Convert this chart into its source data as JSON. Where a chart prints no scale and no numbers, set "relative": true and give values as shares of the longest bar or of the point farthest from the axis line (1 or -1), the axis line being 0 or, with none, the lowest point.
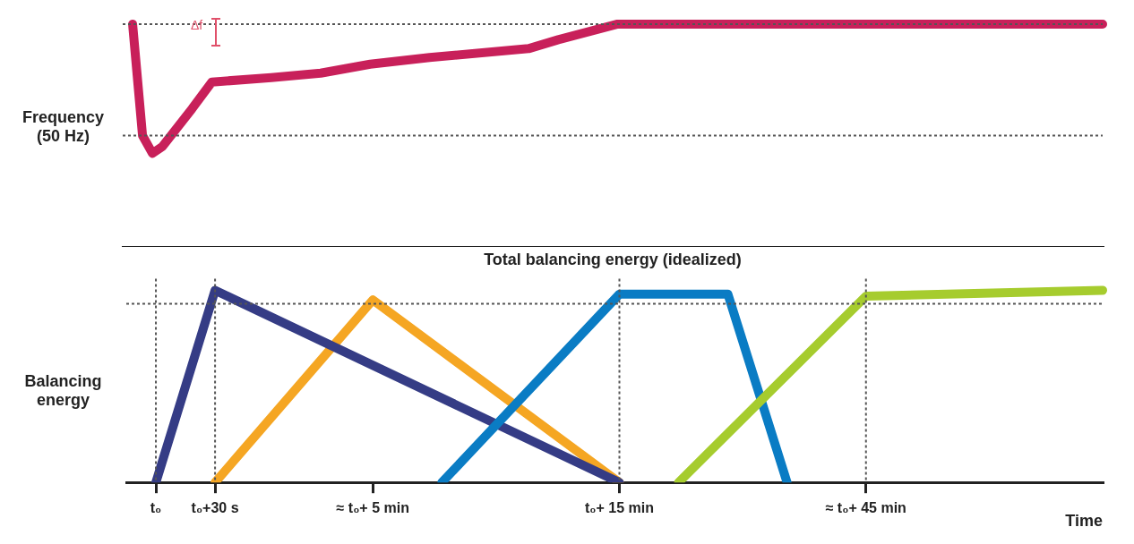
{
  "chart_data": [
    {
      "type": "line",
      "ylabel": "Frequency (50 Hz)",
      "relative": true,
      "tick_labels": false,
      "grid": false,
      "legend": false,
      "annotations": [
        "Δf"
      ],
      "categories": [
        null,
        null,
        null,
        null,
        null,
        null,
        null,
        null,
        null,
        null,
        null,
        null,
        null,
        null,
        null,
        null,
        null,
        null,
        null,
        null,
        null,
        null,
        null,
        null,
        null,
        null,
        null,
        null,
        null,
        null,
        null,
        null,
        null,
        null,
        null,
        null,
        null,
        null,
        null,
        null,
        null,
        null,
        null,
        null,
        null,
        null,
        null,
        null,
        null,
        null,
        null,
        null,
        null,
        null,
        null,
        null,
        null,
        null,
        null,
        null,
        null,
        null,
        null,
        null,
        null,
        null,
        null,
        null,
        null,
        null,
        null,
        null,
        null,
        null,
        null,
        null,
        null,
        null,
        null,
        null,
        null,
        null,
        null,
        null,
        null,
        null,
        null,
        null,
        null,
        null,
        null,
        null,
        null,
        null,
        null,
        null,
        null,
        null,
        null,
        null
      ],
      "ref_lines": [
        {
          "axis": "y",
          "value": 1.0,
          "line_style": "dotted"
        },
        {
          "axis": "y",
          "value": 0.5,
          "line_style": "dotted"
        }
      ],
      "series": [
        {
          "color": "#c8205a",
          "values": [
            null,
            1.0,
            0.5,
            0.42,
            0.45,
            null,
            null,
            0.62,
            null,
            0.74,
            null,
            null,
            null,
            null,
            null,
            0.76,
            null,
            null,
            null,
            null,
            0.78,
            null,
            null,
            null,
            null,
            0.82,
            null,
            null,
            null,
            null,
            null,
            0.85,
            null,
            null,
            null,
            null,
            null,
            null,
            null,
            null,
            null,
            0.89,
            null,
            null,
            0.93,
            null,
            null,
            null,
            null,
            null,
            1.0,
            null,
            null,
            null,
            null,
            null,
            null,
            null,
            null,
            null,
            null,
            null,
            null,
            null,
            null,
            null,
            null,
            null,
            null,
            null,
            null,
            null,
            null,
            null,
            null,
            null,
            null,
            null,
            null,
            null,
            null,
            null,
            null,
            null,
            null,
            null,
            null,
            null,
            null,
            null,
            null,
            null,
            null,
            null,
            null,
            null,
            null,
            null,
            null,
            1.0
          ]
        }
      ]
    },
    {
      "type": "line",
      "title": "Total balancing energy (idealized)",
      "ylabel": "Balancing energy",
      "xlabel": "Time",
      "relative": true,
      "tick_labels": "x",
      "grid": false,
      "legend": false,
      "categories": [
        null,
        null,
        null,
        "t₀",
        null,
        null,
        null,
        null,
        null,
        "t₀+30 s",
        null,
        null,
        null,
        null,
        null,
        null,
        null,
        null,
        null,
        null,
        null,
        null,
        null,
        null,
        null,
        "≈ t₀+ 5 min",
        null,
        null,
        null,
        null,
        null,
        null,
        null,
        null,
        null,
        null,
        null,
        null,
        null,
        null,
        null,
        null,
        null,
        null,
        null,
        null,
        null,
        null,
        null,
        null,
        "t₀+ 15 min",
        null,
        null,
        null,
        null,
        null,
        null,
        null,
        null,
        null,
        null,
        null,
        null,
        null,
        null,
        null,
        null,
        null,
        null,
        null,
        null,
        null,
        null,
        null,
        null,
        "≈ t₀+ 45 min",
        null,
        null,
        null,
        null,
        null,
        null,
        null,
        null,
        null,
        null,
        null,
        null,
        null,
        null,
        null,
        null,
        null,
        null,
        null,
        null,
        null,
        null,
        null,
        null
      ],
      "ref_lines": [
        {
          "axis": "y",
          "value": 0.93,
          "line_style": "dotted"
        },
        {
          "axis": "x",
          "value": "t₀",
          "line_style": "dotted"
        },
        {
          "axis": "x",
          "value": "t₀+30 s",
          "line_style": "dotted"
        },
        {
          "axis": "x",
          "value": "t₀+ 15 min",
          "line_style": "dotted"
        },
        {
          "axis": "x",
          "value": "≈ t₀+ 45 min",
          "line_style": "dotted"
        }
      ],
      "series": [
        {
          "color": "#a6cc2e",
          "values": [
            null,
            null,
            null,
            null,
            null,
            null,
            null,
            null,
            null,
            null,
            null,
            null,
            null,
            null,
            null,
            null,
            null,
            null,
            null,
            null,
            null,
            null,
            null,
            null,
            null,
            null,
            null,
            null,
            null,
            null,
            null,
            null,
            null,
            null,
            null,
            null,
            null,
            null,
            null,
            null,
            null,
            null,
            null,
            null,
            null,
            null,
            null,
            null,
            null,
            null,
            null,
            null,
            null,
            null,
            null,
            null,
            0,
            null,
            null,
            null,
            null,
            null,
            null,
            null,
            null,
            null,
            null,
            null,
            null,
            null,
            null,
            null,
            null,
            null,
            null,
            0.97,
            null,
            null,
            null,
            null,
            null,
            null,
            null,
            null,
            null,
            null,
            null,
            null,
            null,
            null,
            null,
            null,
            null,
            null,
            null,
            null,
            null,
            null,
            null,
            1.0
          ]
        },
        {
          "color": "#0a7cc4",
          "values": [
            null,
            null,
            null,
            null,
            null,
            null,
            null,
            null,
            null,
            null,
            null,
            null,
            null,
            null,
            null,
            null,
            null,
            null,
            null,
            null,
            null,
            null,
            null,
            null,
            null,
            null,
            null,
            null,
            null,
            null,
            null,
            null,
            0,
            null,
            null,
            null,
            null,
            null,
            null,
            null,
            null,
            null,
            null,
            null,
            null,
            null,
            null,
            null,
            null,
            null,
            0.98,
            null,
            null,
            null,
            null,
            null,
            null,
            null,
            null,
            null,
            null,
            0.98,
            null,
            null,
            null,
            null,
            null,
            0,
            null,
            null,
            null,
            null,
            null,
            null,
            null,
            null,
            null,
            null,
            null,
            null,
            null,
            null,
            null,
            null,
            null,
            null,
            null,
            null,
            null,
            null,
            null,
            null,
            null,
            null,
            null,
            null,
            null,
            null,
            null,
            null
          ]
        },
        {
          "color": "#353c85",
          "values": [
            null,
            null,
            null,
            0,
            null,
            null,
            null,
            null,
            null,
            1.0,
            null,
            null,
            null,
            null,
            null,
            null,
            null,
            null,
            null,
            null,
            null,
            null,
            null,
            null,
            null,
            null,
            null,
            null,
            null,
            null,
            null,
            null,
            null,
            null,
            null,
            null,
            null,
            null,
            null,
            null,
            null,
            null,
            null,
            null,
            null,
            null,
            null,
            null,
            null,
            null,
            0,
            null,
            null,
            null,
            null,
            null,
            null,
            null,
            null,
            null,
            null,
            null,
            null,
            null,
            null,
            null,
            null,
            null,
            null,
            null,
            null,
            null,
            null,
            null,
            null,
            null,
            null,
            null,
            null,
            null,
            null,
            null,
            null,
            null,
            null,
            null,
            null,
            null,
            null,
            null,
            null,
            null,
            null,
            null,
            null,
            null,
            null,
            null,
            null,
            null
          ]
        },
        {
          "color": "#f5a623",
          "values": [
            null,
            null,
            null,
            null,
            null,
            null,
            null,
            null,
            null,
            0,
            null,
            null,
            null,
            null,
            null,
            null,
            null,
            null,
            null,
            null,
            null,
            null,
            null,
            null,
            null,
            0.95,
            null,
            null,
            null,
            null,
            null,
            null,
            null,
            null,
            null,
            null,
            null,
            null,
            null,
            null,
            null,
            null,
            null,
            null,
            null,
            null,
            null,
            null,
            null,
            null,
            0,
            null,
            null,
            null,
            null,
            null,
            null,
            null,
            null,
            null,
            null,
            null,
            null,
            null,
            null,
            null,
            null,
            null,
            null,
            null,
            null,
            null,
            null,
            null,
            null,
            null,
            null,
            null,
            null,
            null,
            null,
            null,
            null,
            null,
            null,
            null,
            null,
            null,
            null,
            null,
            null,
            null,
            null,
            null,
            null,
            null,
            null,
            null,
            null,
            null
          ]
        }
      ]
    }
  ]
}
